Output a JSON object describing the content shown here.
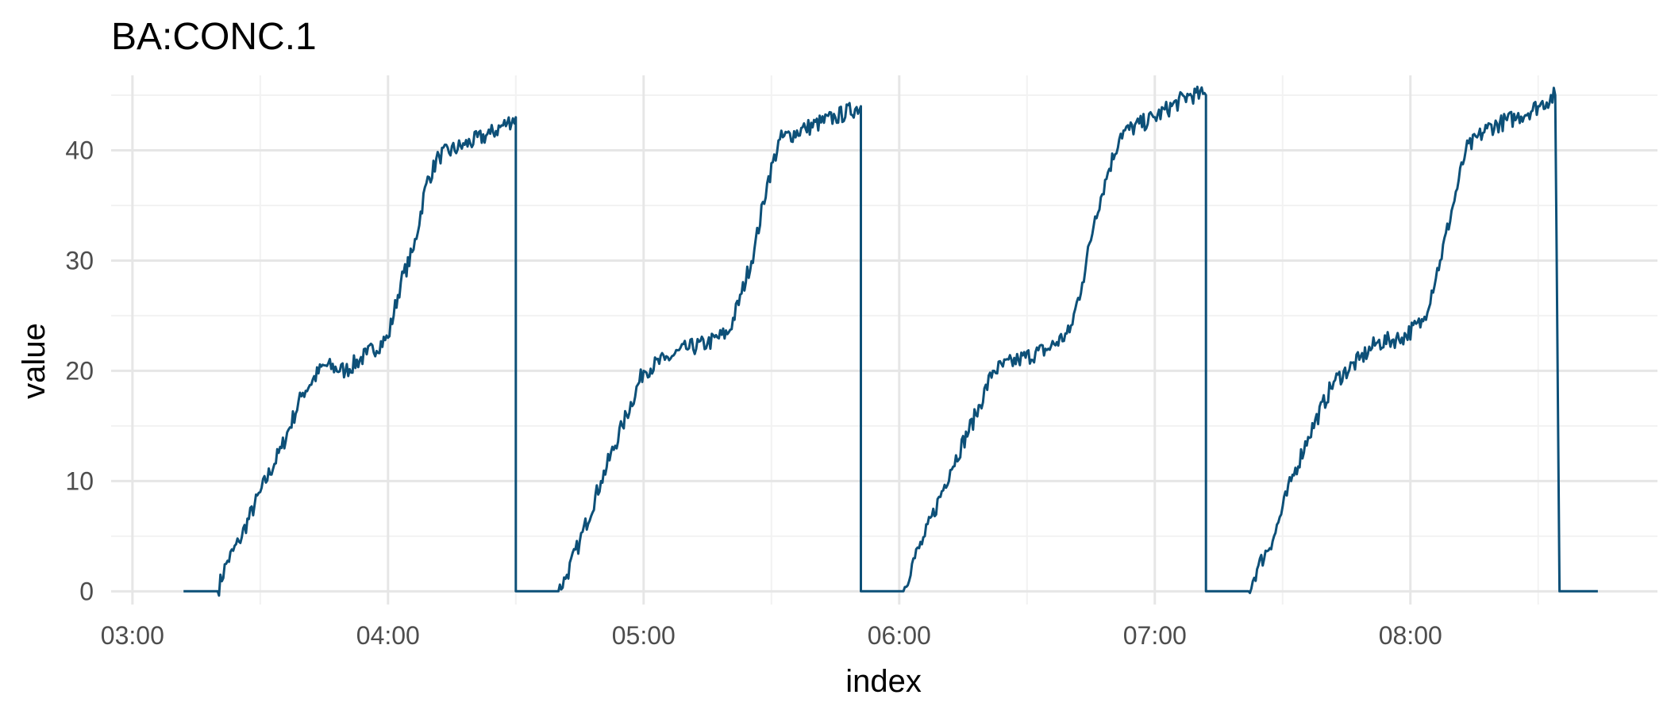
{
  "chart_data": {
    "type": "line",
    "title": "BA:CONC.1",
    "xlabel": "index",
    "ylabel": "value",
    "x_ticks": [
      "03:00",
      "04:00",
      "05:00",
      "06:00",
      "07:00",
      "08:00"
    ],
    "y_ticks": [
      0,
      10,
      20,
      30,
      40
    ],
    "xlim": [
      "02:55",
      "08:58"
    ],
    "ylim": [
      -1.2,
      46.8
    ],
    "grid": true,
    "legend": "none",
    "line_color": "#0d5078",
    "series": [
      {
        "points": [
          [
            "03:12",
            0
          ],
          [
            "03:20",
            0
          ],
          [
            "03:22",
            2.5
          ],
          [
            "03:25",
            4.5
          ],
          [
            "03:30",
            9
          ],
          [
            "03:35",
            13
          ],
          [
            "03:40",
            18
          ],
          [
            "03:45",
            20.5
          ],
          [
            "03:50",
            20
          ],
          [
            "03:55",
            21.5
          ],
          [
            "04:00",
            23
          ],
          [
            "04:03",
            28
          ],
          [
            "04:06",
            31
          ],
          [
            "04:09",
            37
          ],
          [
            "04:12",
            39.5
          ],
          [
            "04:18",
            40.5
          ],
          [
            "04:24",
            41.5
          ],
          [
            "04:28",
            42.5
          ],
          [
            "04:30",
            43
          ],
          [
            "04:30",
            0
          ],
          [
            "04:40",
            0
          ],
          [
            "04:42",
            1.5
          ],
          [
            "04:45",
            4.5
          ],
          [
            "04:50",
            10
          ],
          [
            "04:55",
            15
          ],
          [
            "05:00",
            20
          ],
          [
            "05:05",
            21
          ],
          [
            "05:10",
            22
          ],
          [
            "05:15",
            22.5
          ],
          [
            "05:20",
            23.5
          ],
          [
            "05:23",
            27
          ],
          [
            "05:26",
            31
          ],
          [
            "05:29",
            37
          ],
          [
            "05:32",
            41
          ],
          [
            "05:38",
            42
          ],
          [
            "05:45",
            43
          ],
          [
            "05:51",
            44
          ],
          [
            "05:51",
            0
          ],
          [
            "06:01",
            0
          ],
          [
            "06:03",
            2.5
          ],
          [
            "06:06",
            5
          ],
          [
            "06:12",
            11
          ],
          [
            "06:18",
            16
          ],
          [
            "06:22",
            20
          ],
          [
            "06:28",
            21
          ],
          [
            "06:35",
            22
          ],
          [
            "06:40",
            23.5
          ],
          [
            "06:43",
            28
          ],
          [
            "06:46",
            34
          ],
          [
            "06:49",
            38
          ],
          [
            "06:52",
            41.5
          ],
          [
            "07:00",
            43
          ],
          [
            "07:08",
            45
          ],
          [
            "07:12",
            45
          ],
          [
            "07:12",
            0
          ],
          [
            "07:22",
            0
          ],
          [
            "07:24",
            2
          ],
          [
            "07:28",
            5
          ],
          [
            "07:32",
            10
          ],
          [
            "07:36",
            14
          ],
          [
            "07:42",
            19
          ],
          [
            "07:48",
            21
          ],
          [
            "07:52",
            22.5
          ],
          [
            "07:58",
            23
          ],
          [
            "08:03",
            24.5
          ],
          [
            "08:07",
            30
          ],
          [
            "08:10",
            35
          ],
          [
            "08:13",
            40
          ],
          [
            "08:18",
            42
          ],
          [
            "08:25",
            43
          ],
          [
            "08:30",
            44
          ],
          [
            "08:34",
            45
          ],
          [
            "08:35",
            0
          ],
          [
            "08:44",
            0
          ]
        ]
      }
    ]
  }
}
